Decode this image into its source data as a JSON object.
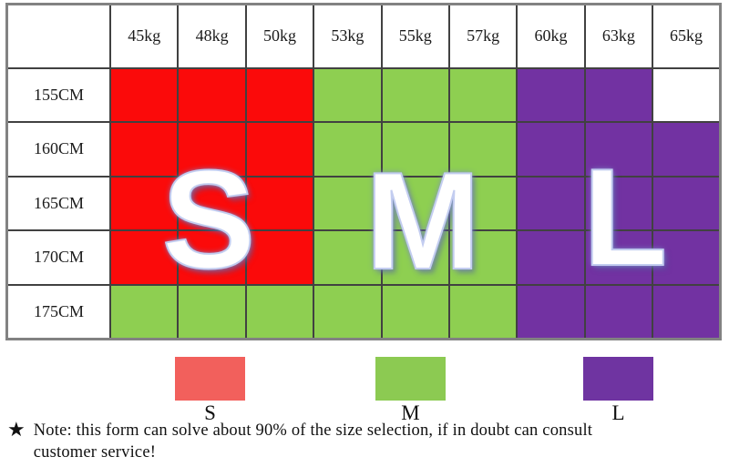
{
  "chart_data": {
    "type": "table",
    "title": "",
    "x_categories": [
      "45kg",
      "48kg",
      "50kg",
      "53kg",
      "55kg",
      "57kg",
      "60kg",
      "63kg",
      "65kg"
    ],
    "y_categories": [
      "155CM",
      "160CM",
      "165CM",
      "170CM",
      "175CM"
    ],
    "cell_values": [
      [
        "S",
        "S",
        "S",
        "M",
        "M",
        "M",
        "L",
        "L",
        ""
      ],
      [
        "S",
        "S",
        "S",
        "M",
        "M",
        "M",
        "L",
        "L",
        "L"
      ],
      [
        "S",
        "S",
        "S",
        "M",
        "M",
        "M",
        "L",
        "L",
        "L"
      ],
      [
        "S",
        "S",
        "S",
        "M",
        "M",
        "M",
        "L",
        "L",
        "L"
      ],
      [
        "M",
        "M",
        "M",
        "M",
        "M",
        "M",
        "L",
        "L",
        "L"
      ]
    ],
    "size_colors": {
      "S": "#fb0a0a",
      "M": "#8ecf51",
      "L": "#7232a2"
    },
    "legend_position": "bottom",
    "grid": true
  },
  "overlay": {
    "letters": [
      {
        "text": "S"
      },
      {
        "text": "M"
      },
      {
        "text": "L"
      }
    ]
  },
  "legend": {
    "items": [
      {
        "label": "S",
        "color": "#f2605c"
      },
      {
        "label": "M",
        "color": "#8cca52"
      },
      {
        "label": "L",
        "color": "#6f34a1"
      }
    ]
  },
  "note": {
    "star": "★",
    "line1": "Note: this form can solve about 90% of the size selection, if in doubt can consult",
    "line2": "customer service!"
  }
}
